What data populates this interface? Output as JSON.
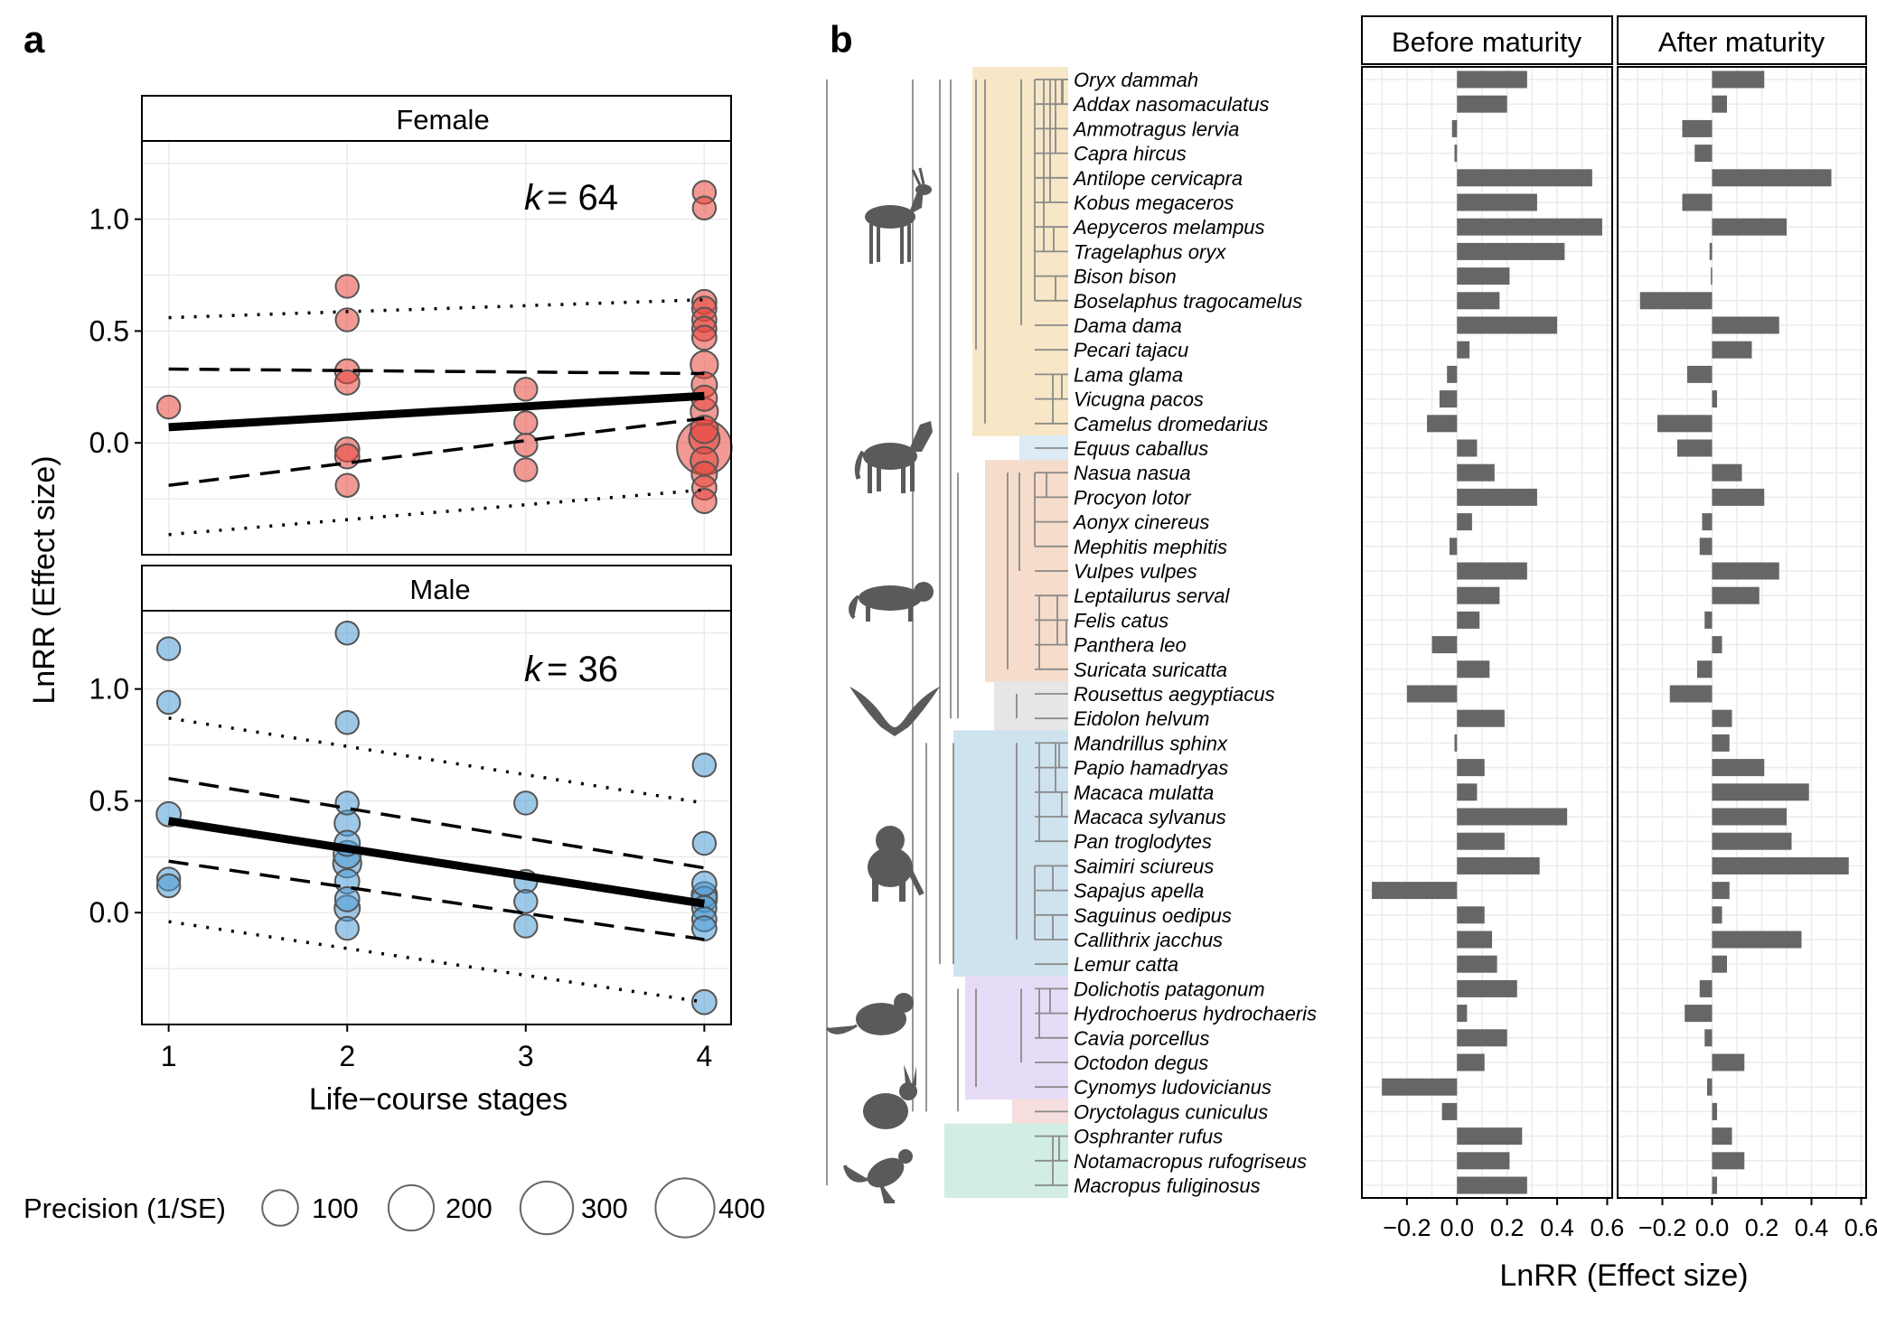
{
  "panel_labels": {
    "a": "a",
    "b": "b"
  },
  "chart_data": [
    {
      "type": "scatter",
      "panel": "a",
      "xlabel": "Life−course stages",
      "ylabel": "LnRR (Effect size)",
      "xlim": [
        0.85,
        4.15
      ],
      "ylim": [
        -0.5,
        1.35
      ],
      "x_ticks": [
        "1",
        "2",
        "3",
        "4"
      ],
      "y_ticks": [
        "0.0",
        "0.5",
        "1.0"
      ],
      "legend": {
        "title": "Precision (1/SE)",
        "position": "bottom",
        "labels": [
          "100",
          "200",
          "300",
          "400"
        ]
      },
      "facets": [
        {
          "strip": "Female",
          "k_label": "k",
          "k_value": "= 64",
          "color": "#e8453c",
          "fit": {
            "x": [
              1,
              4
            ],
            "y": [
              0.07,
              0.21
            ]
          },
          "ci": {
            "x": [
              1,
              4
            ],
            "lower": [
              -0.19,
              0.11
            ],
            "upper": [
              0.33,
              0.31
            ]
          },
          "pi": {
            "x": [
              1,
              4
            ],
            "lower": [
              -0.41,
              -0.21
            ],
            "upper": [
              0.56,
              0.64
            ]
          },
          "points": [
            {
              "x": 1,
              "y": 0.16,
              "p": 20
            },
            {
              "x": 2,
              "y": 0.7,
              "p": 20
            },
            {
              "x": 2,
              "y": 0.55,
              "p": 20
            },
            {
              "x": 2,
              "y": 0.32,
              "p": 25
            },
            {
              "x": 2,
              "y": 0.27,
              "p": 25
            },
            {
              "x": 2,
              "y": -0.03,
              "p": 25
            },
            {
              "x": 2,
              "y": -0.06,
              "p": 25
            },
            {
              "x": 2,
              "y": -0.19,
              "p": 20
            },
            {
              "x": 3,
              "y": 0.24,
              "p": 20
            },
            {
              "x": 3,
              "y": 0.09,
              "p": 20
            },
            {
              "x": 3,
              "y": -0.01,
              "p": 20
            },
            {
              "x": 3,
              "y": -0.12,
              "p": 20
            },
            {
              "x": 4,
              "y": 1.12,
              "p": 20
            },
            {
              "x": 4,
              "y": 1.05,
              "p": 20
            },
            {
              "x": 4,
              "y": 0.63,
              "p": 25
            },
            {
              "x": 4,
              "y": 0.6,
              "p": 25
            },
            {
              "x": 4,
              "y": 0.55,
              "p": 25
            },
            {
              "x": 4,
              "y": 0.51,
              "p": 25
            },
            {
              "x": 4,
              "y": 0.47,
              "p": 25
            },
            {
              "x": 4,
              "y": 0.35,
              "p": 40
            },
            {
              "x": 4,
              "y": 0.26,
              "p": 30
            },
            {
              "x": 4,
              "y": 0.2,
              "p": 30
            },
            {
              "x": 4,
              "y": 0.14,
              "p": 40
            },
            {
              "x": 4,
              "y": 0.06,
              "p": 40
            },
            {
              "x": 4,
              "y": 0.02,
              "p": 60
            },
            {
              "x": 4,
              "y": -0.02,
              "p": 330
            },
            {
              "x": 4,
              "y": -0.08,
              "p": 40
            },
            {
              "x": 4,
              "y": -0.14,
              "p": 30
            },
            {
              "x": 4,
              "y": -0.2,
              "p": 25
            },
            {
              "x": 4,
              "y": -0.26,
              "p": 25
            }
          ]
        },
        {
          "strip": "Male",
          "k_label": "k",
          "k_value": "= 36",
          "color": "#4e9bd4",
          "fit": {
            "x": [
              1,
              4
            ],
            "y": [
              0.41,
              0.04
            ]
          },
          "ci": {
            "x": [
              1,
              4
            ],
            "lower": [
              0.23,
              -0.12
            ],
            "upper": [
              0.6,
              0.2
            ]
          },
          "pi": {
            "x": [
              1,
              4
            ],
            "lower": [
              -0.04,
              -0.4
            ],
            "upper": [
              0.87,
              0.49
            ]
          },
          "points": [
            {
              "x": 1,
              "y": 1.18,
              "p": 20
            },
            {
              "x": 1,
              "y": 0.94,
              "p": 20
            },
            {
              "x": 1,
              "y": 0.44,
              "p": 25
            },
            {
              "x": 1,
              "y": 0.15,
              "p": 20
            },
            {
              "x": 1,
              "y": 0.12,
              "p": 20
            },
            {
              "x": 2,
              "y": 1.25,
              "p": 20
            },
            {
              "x": 2,
              "y": 0.85,
              "p": 20
            },
            {
              "x": 2,
              "y": 0.49,
              "p": 20
            },
            {
              "x": 2,
              "y": 0.4,
              "p": 30
            },
            {
              "x": 2,
              "y": 0.31,
              "p": 30
            },
            {
              "x": 2,
              "y": 0.26,
              "p": 40
            },
            {
              "x": 2,
              "y": 0.22,
              "p": 45
            },
            {
              "x": 2,
              "y": 0.14,
              "p": 25
            },
            {
              "x": 2,
              "y": 0.06,
              "p": 25
            },
            {
              "x": 2,
              "y": 0.02,
              "p": 30
            },
            {
              "x": 2,
              "y": -0.07,
              "p": 20
            },
            {
              "x": 3,
              "y": 0.49,
              "p": 20
            },
            {
              "x": 3,
              "y": 0.14,
              "p": 20
            },
            {
              "x": 3,
              "y": 0.05,
              "p": 20
            },
            {
              "x": 3,
              "y": -0.06,
              "p": 20
            },
            {
              "x": 4,
              "y": 0.66,
              "p": 20
            },
            {
              "x": 4,
              "y": 0.31,
              "p": 20
            },
            {
              "x": 4,
              "y": 0.13,
              "p": 25
            },
            {
              "x": 4,
              "y": 0.08,
              "p": 30
            },
            {
              "x": 4,
              "y": 0.06,
              "p": 30
            },
            {
              "x": 4,
              "y": 0.02,
              "p": 25
            },
            {
              "x": 4,
              "y": -0.03,
              "p": 25
            },
            {
              "x": 4,
              "y": -0.07,
              "p": 25
            },
            {
              "x": 4,
              "y": -0.4,
              "p": 25
            }
          ]
        }
      ]
    },
    {
      "type": "bar",
      "panel": "b",
      "orientation": "horizontal",
      "xlabel": "LnRR (Effect size)",
      "xlim": [
        -0.38,
        0.62
      ],
      "x_ticks": [
        "−0.2",
        "0.0",
        "0.2",
        "0.4",
        "0.6"
      ],
      "x_tick_values": [
        -0.2,
        0,
        0.2,
        0.4,
        0.6
      ],
      "bar_color": "#666666",
      "categories": [
        "Oryx dammah",
        "Addax nasomaculatus",
        "Ammotragus lervia",
        "Capra hircus",
        "Antilope cervicapra",
        "Kobus megaceros",
        "Aepyceros melampus",
        "Tragelaphus oryx",
        "Bison bison",
        "Boselaphus tragocamelus",
        "Dama dama",
        "Pecari tajacu",
        "Lama glama",
        "Vicugna pacos",
        "Camelus dromedarius",
        "Equus caballus",
        "Nasua nasua",
        "Procyon lotor",
        "Aonyx cinereus",
        "Mephitis mephitis",
        "Vulpes vulpes",
        "Leptailurus serval",
        "Felis catus",
        "Panthera leo",
        "Suricata suricatta",
        "Rousettus aegyptiacus",
        "Eidolon helvum",
        "Mandrillus sphinx",
        "Papio hamadryas",
        "Macaca mulatta",
        "Macaca sylvanus",
        "Pan troglodytes",
        "Saimiri sciureus",
        "Sapajus apella",
        "Saguinus oedipus",
        "Callithrix jacchus",
        "Lemur catta",
        "Dolichotis patagonum",
        "Hydrochoerus hydrochaeris",
        "Cavia porcellus",
        "Octodon degus",
        "Cynomys ludovicianus",
        "Oryctolagus cuniculus",
        "Osphranter rufus",
        "Notamacropus rufogriseus",
        "Macropus fuliginosus"
      ],
      "clades": [
        {
          "name": "bovids-camelids",
          "color": "#f7e7c6",
          "from": 0,
          "to": 14
        },
        {
          "name": "equids",
          "color": "#dcebf5",
          "from": 15,
          "to": 15
        },
        {
          "name": "carnivores",
          "color": "#f6dcca",
          "from": 16,
          "to": 24
        },
        {
          "name": "bats",
          "color": "#e6e6e6",
          "from": 25,
          "to": 26
        },
        {
          "name": "primates",
          "color": "#cfe3ef",
          "from": 27,
          "to": 36
        },
        {
          "name": "rodents",
          "color": "#e6dcf7",
          "from": 37,
          "to": 41
        },
        {
          "name": "lagomorphs",
          "color": "#f6dede",
          "from": 42,
          "to": 42
        },
        {
          "name": "marsupials",
          "color": "#d2ede3",
          "from": 43,
          "to": 45
        }
      ],
      "series": [
        {
          "name": "Before maturity",
          "values": [
            0.28,
            0.2,
            -0.02,
            -0.01,
            0.54,
            0.32,
            0.58,
            0.43,
            0.21,
            0.17,
            0.4,
            0.05,
            -0.04,
            -0.07,
            -0.12,
            0.08,
            0.15,
            0.32,
            0.06,
            -0.03,
            0.28,
            0.17,
            0.09,
            -0.1,
            0.13,
            -0.2,
            0.19,
            -0.01,
            0.11,
            0.08,
            0.44,
            0.19,
            0.33,
            -0.34,
            0.11,
            0.14,
            0.16,
            0.24,
            0.04,
            0.2,
            0.11,
            -0.3,
            -0.06,
            0.26,
            0.21,
            0.28
          ]
        },
        {
          "name": "After maturity",
          "values": [
            0.21,
            0.06,
            -0.12,
            -0.07,
            0.48,
            -0.12,
            0.3,
            -0.01,
            -0.005,
            -0.29,
            0.27,
            0.16,
            -0.1,
            0.02,
            -0.22,
            -0.14,
            0.12,
            0.21,
            -0.04,
            -0.05,
            0.27,
            0.19,
            -0.03,
            0.04,
            -0.06,
            -0.17,
            0.08,
            0.07,
            0.21,
            0.39,
            0.3,
            0.32,
            0.55,
            0.07,
            0.04,
            0.36,
            0.06,
            -0.05,
            -0.11,
            -0.03,
            0.13,
            -0.02,
            0.02,
            0.08,
            0.13,
            0.02
          ]
        }
      ]
    }
  ]
}
